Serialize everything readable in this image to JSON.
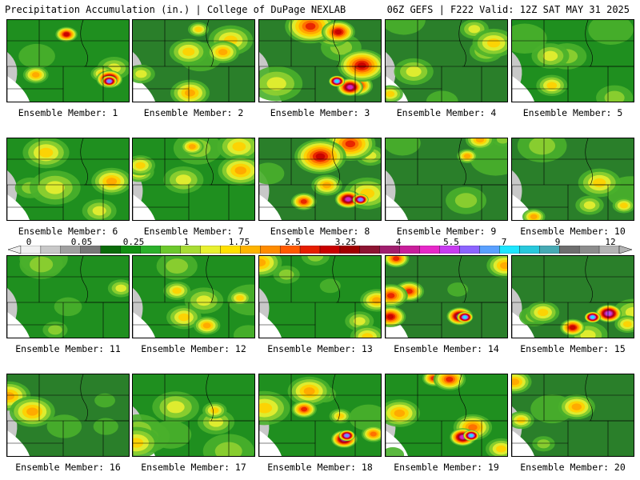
{
  "header": {
    "title": "Precipitation Accumulation (in.) | College of DuPage NEXLAB",
    "run_info": "06Z GEFS | F222 Valid: 12Z SAT MAY 31 2025"
  },
  "panels": [
    {
      "label": "Ensemble Member: 1"
    },
    {
      "label": "Ensemble Member: 2"
    },
    {
      "label": "Ensemble Member: 3"
    },
    {
      "label": "Ensemble Member: 4"
    },
    {
      "label": "Ensemble Member: 5"
    },
    {
      "label": "Ensemble Member: 6"
    },
    {
      "label": "Ensemble Member: 7"
    },
    {
      "label": "Ensemble Member: 8"
    },
    {
      "label": "Ensemble Member: 9"
    },
    {
      "label": "Ensemble Member: 10"
    },
    {
      "label": "Ensemble Member: 11"
    },
    {
      "label": "Ensemble Member: 12"
    },
    {
      "label": "Ensemble Member: 13"
    },
    {
      "label": "Ensemble Member: 14"
    },
    {
      "label": "Ensemble Member: 15"
    },
    {
      "label": "Ensemble Member: 16"
    },
    {
      "label": "Ensemble Member: 17"
    },
    {
      "label": "Ensemble Member: 18"
    },
    {
      "label": "Ensemble Member: 19"
    },
    {
      "label": "Ensemble Member: 20"
    }
  ],
  "legend": {
    "labels": [
      "0",
      "0.05",
      "0.25",
      "1",
      "1.75",
      "2.5",
      "3.25",
      "4",
      "5.5",
      "7",
      "9",
      "12"
    ],
    "colors": [
      "#f0f0f0",
      "#c8c8c8",
      "#a0a0a0",
      "#787878",
      "#0a6b0a",
      "#128f12",
      "#2bb02b",
      "#6cc82c",
      "#a8dc34",
      "#e8f030",
      "#ffe000",
      "#ffb400",
      "#ff8c00",
      "#ff5a00",
      "#e61e00",
      "#c80000",
      "#a00000",
      "#8c1432",
      "#a01e6e",
      "#c81e9a",
      "#e628c8",
      "#c83cf0",
      "#8c64ff",
      "#5aa0ff",
      "#1ee6ff",
      "#28c8dc",
      "#46aab4",
      "#6e6e6e",
      "#8c8c8c",
      "#b4b4b4"
    ]
  }
}
